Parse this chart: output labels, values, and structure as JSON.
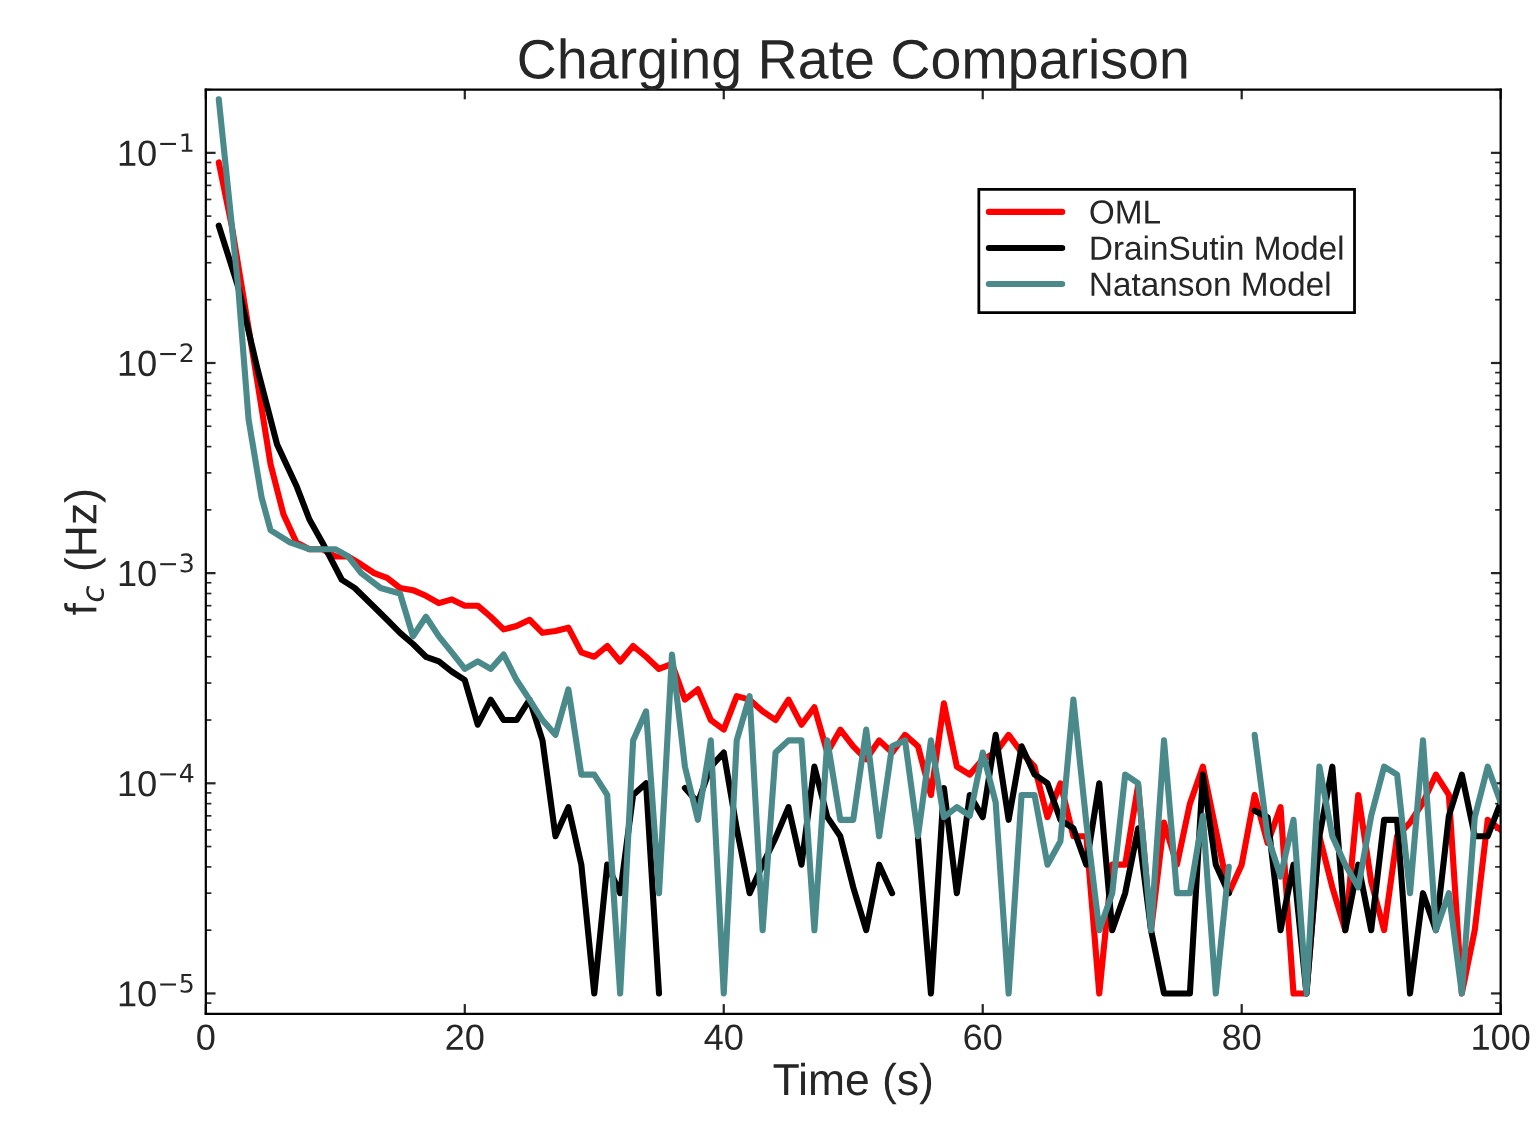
{
  "chart_data": {
    "type": "line",
    "title": "Charging Rate Comparison",
    "xlabel": "Time (s)",
    "ylabel": "f$_{c}$ (Hz)",
    "log": "y",
    "xlim": [
      0,
      100
    ],
    "xticks": [
      0,
      20,
      40,
      60,
      80,
      100
    ],
    "ylim": [
      8e-06,
      0.2
    ],
    "yticks": [
      {
        "value": 1e-05,
        "label": "10$^{−5}$"
      },
      {
        "value": 0.0001,
        "label": "10$^{−4}$"
      },
      {
        "value": 0.001,
        "label": "10$^{−3}$"
      },
      {
        "value": 0.01,
        "label": "10$^{−2}$"
      },
      {
        "value": 0.1,
        "label": "10$^{−1}$"
      }
    ],
    "grid": false,
    "legend": "top right",
    "line_style": "solid",
    "marker": "none",
    "series": [
      {
        "name": "OML",
        "color": "#ff0000",
        "x": [
          1,
          2,
          3,
          4,
          5,
          6,
          7,
          8,
          9,
          10,
          11,
          12,
          13,
          14,
          15,
          16,
          17,
          18,
          19,
          20,
          21,
          22,
          23,
          24,
          25,
          26,
          27,
          28,
          29,
          30,
          31,
          32,
          33,
          34,
          35,
          36,
          37,
          38,
          39,
          40,
          41,
          42,
          43,
          44,
          45,
          46,
          47,
          48,
          49,
          50,
          51,
          52,
          53,
          54,
          55,
          56,
          57,
          58,
          59,
          60,
          61,
          62,
          63,
          64,
          65,
          66,
          67,
          68,
          69,
          70,
          71,
          72,
          73,
          74,
          75,
          76,
          77,
          78,
          79,
          80,
          81,
          82,
          83,
          84,
          85,
          86,
          87,
          88,
          89,
          90,
          91,
          92,
          93,
          94,
          95,
          96,
          97,
          98,
          99,
          100
        ],
        "values": [
          0.09,
          0.045,
          0.019,
          0.008,
          0.0033,
          0.0019,
          0.0014,
          0.0013,
          0.0013,
          0.0012,
          0.0012,
          0.0011,
          0.001,
          0.00095,
          0.00085,
          0.00083,
          0.00078,
          0.00072,
          0.00075,
          0.0007,
          0.0007,
          0.00062,
          0.00054,
          0.00056,
          0.0006,
          0.00052,
          0.00053,
          0.00055,
          0.00042,
          0.0004,
          0.00045,
          0.00038,
          0.00045,
          0.0004,
          0.00035,
          0.00037,
          0.00025,
          0.00028,
          0.0002,
          0.00018,
          0.00026,
          0.00025,
          0.00022,
          0.0002,
          0.00025,
          0.00019,
          0.00023,
          0.00014,
          0.00018,
          0.00015,
          0.00013,
          0.00016,
          0.00014,
          0.00017,
          0.00015,
          8.8e-05,
          0.00024,
          0.00012,
          0.00011,
          0.00013,
          0.00014,
          0.00017,
          0.00014,
          0.00012,
          6.9e-05,
          0.0001,
          5.6e-05,
          5.6e-05,
          1e-05,
          4.1e-05,
          4.1e-05,
          9.8e-05,
          2e-05,
          6.5e-05,
          4.1e-05,
          8e-05,
          0.00012,
          6e-05,
          3e-05,
          4.1e-05,
          8.8e-05,
          5.2e-05,
          7.7e-05,
          1e-05,
          1e-05,
          5.6e-05,
          3.2e-05,
          2e-05,
          8.8e-05,
          3.4e-05,
          2e-05,
          5.6e-05,
          6.5e-05,
          8.1e-05,
          0.00011,
          8.8e-05,
          1e-05,
          2e-05,
          6.7e-05,
          6e-05
        ]
      },
      {
        "name": "DrainSutin Model",
        "color": "#000000",
        "x": [
          1,
          2.5,
          4,
          5.5,
          7,
          8,
          9,
          10.5,
          11.5,
          13,
          14,
          15,
          16,
          17,
          18,
          19,
          20,
          21,
          22,
          23,
          24,
          25,
          26,
          27,
          28,
          29,
          30,
          31,
          32,
          33,
          34,
          35,
          36,
          37,
          38,
          39,
          40,
          41,
          42,
          43,
          44,
          45,
          46,
          47,
          48,
          49,
          50,
          51,
          52,
          53,
          54,
          55,
          56,
          57,
          58,
          59,
          60,
          61,
          62,
          63,
          64,
          65,
          66,
          67,
          68,
          69,
          70,
          71,
          72,
          73,
          74,
          75,
          76,
          77,
          78,
          79,
          80,
          81,
          82,
          83,
          84,
          85,
          86,
          87,
          88,
          89,
          90,
          91,
          92,
          93,
          94,
          95,
          96,
          97,
          98,
          99,
          100
        ],
        "values": [
          0.045,
          0.023,
          0.0093,
          0.0041,
          0.0026,
          0.0018,
          0.0014,
          0.00093,
          0.00085,
          0.00069,
          0.0006,
          0.00052,
          0.00046,
          0.0004,
          0.00038,
          0.00034,
          0.00031,
          0.00019,
          0.00025,
          0.0002,
          0.0002,
          0.00025,
          0.00016,
          5.6e-05,
          7.7e-05,
          4.1e-05,
          1e-05,
          4.1e-05,
          3e-05,
          8.8e-05,
          0.0001,
          1e-05,
          null,
          9.5e-05,
          8.1e-05,
          0.00012,
          0.00014,
          6.1e-05,
          3e-05,
          4.1e-05,
          5.5e-05,
          7.7e-05,
          4.1e-05,
          0.00012,
          6.9e-05,
          5.6e-05,
          3.2e-05,
          2e-05,
          4.1e-05,
          3e-05,
          null,
          5.5e-05,
          1e-05,
          9.5e-05,
          3e-05,
          8.8e-05,
          6.9e-05,
          0.00017,
          6.7e-05,
          0.00015,
          0.00011,
          0.0001,
          6.7e-05,
          6.1e-05,
          4.1e-05,
          0.0001,
          2e-05,
          3e-05,
          6.1e-05,
          2e-05,
          1e-05,
          1e-05,
          1e-05,
          0.00011,
          4.1e-05,
          3e-05,
          null,
          7.4e-05,
          6.9e-05,
          2e-05,
          4.1e-05,
          1e-05,
          5.6e-05,
          0.00012,
          2e-05,
          4.1e-05,
          2e-05,
          6.7e-05,
          6.7e-05,
          1e-05,
          3e-05,
          2e-05,
          7e-05,
          0.00011,
          5.6e-05,
          5.6e-05,
          8.1e-05
        ]
      },
      {
        "name": "Natanson Model",
        "color": "#4a8a8a",
        "x": [
          1,
          2.5,
          3.3,
          4.3,
          5,
          6.5,
          8,
          10,
          11,
          12,
          13.5,
          15,
          16,
          17,
          18,
          19,
          20,
          21,
          22,
          23,
          24,
          25,
          26,
          27,
          28,
          29,
          30,
          31,
          32,
          33,
          34,
          35,
          36,
          37,
          38,
          39,
          40,
          41,
          42,
          43,
          44,
          45,
          46,
          47,
          48,
          49,
          50,
          51,
          52,
          53,
          54,
          55,
          56,
          57,
          58,
          59,
          60,
          61,
          62,
          63,
          64,
          65,
          66,
          67,
          68,
          69,
          70,
          71,
          72,
          73,
          74,
          75,
          76,
          77,
          78,
          79,
          80,
          81,
          82,
          83,
          84,
          85,
          86,
          87,
          88,
          89,
          90,
          91,
          92,
          93,
          94,
          95,
          96,
          97,
          98,
          99,
          100
        ],
        "values": [
          0.18,
          0.023,
          0.0054,
          0.0023,
          0.0016,
          0.0014,
          0.0013,
          0.0013,
          0.0012,
          0.001,
          0.00085,
          0.0008,
          0.0005,
          0.00062,
          0.0005,
          0.00042,
          0.00035,
          0.00038,
          0.00035,
          0.00041,
          0.00031,
          0.00025,
          0.0002,
          0.00017,
          0.00028,
          0.00011,
          0.00011,
          8.8e-05,
          1e-05,
          0.00016,
          0.00022,
          3e-05,
          0.00041,
          0.00012,
          6.7e-05,
          0.00016,
          1e-05,
          0.00016,
          0.00026,
          2e-05,
          0.00014,
          0.00016,
          0.00016,
          2e-05,
          0.00016,
          6.7e-05,
          6.7e-05,
          0.00018,
          5.6e-05,
          0.00015,
          0.00016,
          5.6e-05,
          0.00016,
          6.9e-05,
          7.7e-05,
          7e-05,
          0.00014,
          8.1e-05,
          1e-05,
          8.8e-05,
          8.8e-05,
          4.1e-05,
          5.3e-05,
          0.00025,
          6.5e-05,
          2e-05,
          3e-05,
          0.00011,
          0.0001,
          2e-05,
          0.00016,
          3e-05,
          3e-05,
          7e-05,
          1e-05,
          4e-05,
          null,
          0.00017,
          5.6e-05,
          3.6e-05,
          6.7e-05,
          1e-05,
          0.00012,
          5.6e-05,
          4.1e-05,
          3.2e-05,
          7e-05,
          0.00012,
          0.00011,
          3e-05,
          0.00016,
          2e-05,
          3e-05,
          1e-05,
          6.9e-05,
          0.00012,
          8.1e-05
        ]
      }
    ]
  }
}
